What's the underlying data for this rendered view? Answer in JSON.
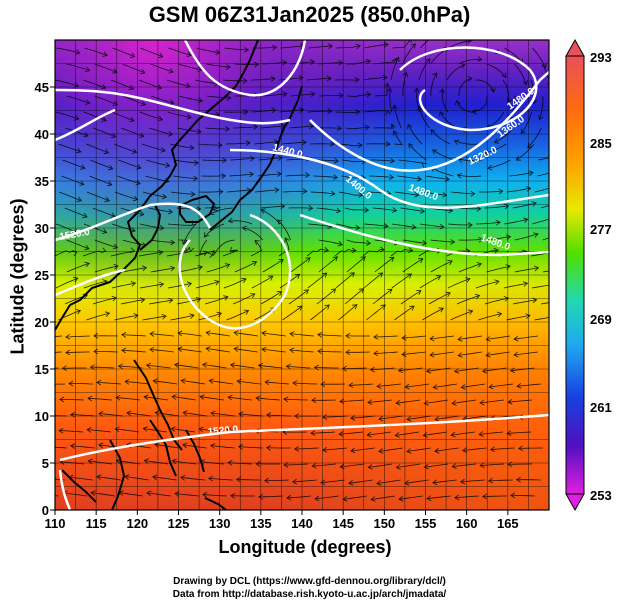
{
  "title": "GSM 06Z31Jan2025 (850.0hPa)",
  "axes": {
    "xlabel": "Longitude (degrees)",
    "ylabel": "Latitude  (degrees)",
    "x_ticks": [
      "110",
      "115",
      "120",
      "125",
      "130",
      "135",
      "140",
      "145",
      "150",
      "155",
      "160",
      "165"
    ],
    "y_ticks": [
      "0",
      "5",
      "10",
      "15",
      "20",
      "25",
      "30",
      "35",
      "40",
      "45"
    ]
  },
  "colorbar": {
    "labels": [
      "293",
      "285",
      "277",
      "269",
      "261",
      "253"
    ],
    "colors": [
      "#e8505a",
      "#ff7a00",
      "#ffd000",
      "#5ee000",
      "#20d8b0",
      "#20a8f0",
      "#1840e0",
      "#5010c0",
      "#e020e0"
    ]
  },
  "contours": {
    "labels": [
      "1440.0",
      "1480.0",
      "1400.0",
      "1520.0",
      "1320.0",
      "1360.0",
      "1480.0",
      "1480.0",
      "1520.0"
    ]
  },
  "credits": {
    "line1": "Drawing by DCL (https://www.gfd-dennou.org/library/dcl/)",
    "line2": "Data from http://database.rish.kyoto-u.ac.jp/arch/jmadata/"
  },
  "chart_data": {
    "type": "heatmap",
    "title": "GSM 06Z31Jan2025 (850.0hPa)",
    "xlabel": "Longitude (degrees)",
    "ylabel": "Latitude  (degrees)",
    "xlim": [
      110,
      170
    ],
    "ylim": [
      0,
      50
    ],
    "shading_variable_range": [
      253,
      293
    ],
    "colorbar_ticks": [
      253,
      261,
      269,
      277,
      285,
      293
    ],
    "contour_labels": [
      1320,
      1360,
      1400,
      1440,
      1480,
      1520
    ],
    "overlays": [
      "temperature shading",
      "geopotential height contours",
      "wind streamlines",
      "coastlines",
      "lat/lon grid"
    ]
  }
}
